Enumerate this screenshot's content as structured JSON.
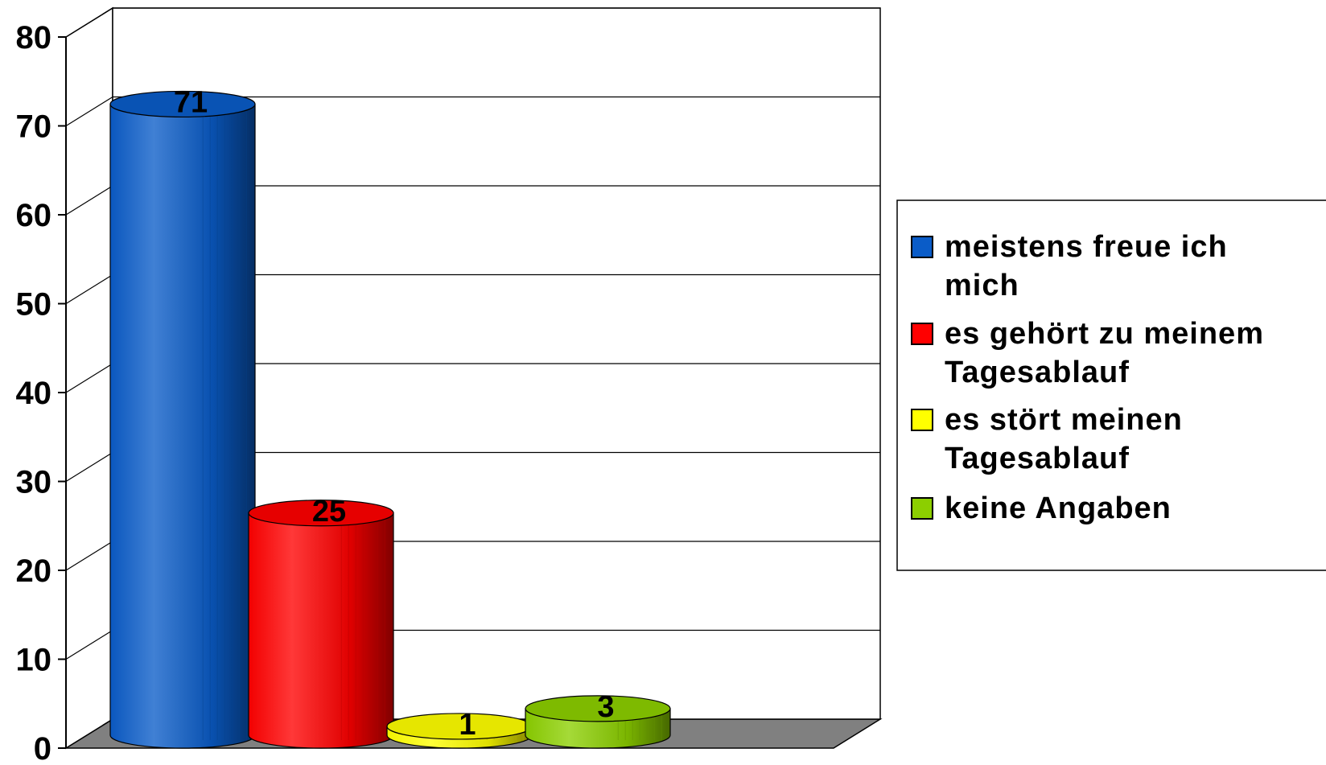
{
  "chart_data": {
    "type": "bar",
    "title": "",
    "xlabel": "",
    "ylabel": "",
    "categories": [
      ""
    ],
    "ylim": [
      0,
      80
    ],
    "yticks": [
      0,
      10,
      20,
      30,
      40,
      50,
      60,
      70,
      80
    ],
    "grid": true,
    "legend_position": "right",
    "style": "3d-cylinder",
    "series": [
      {
        "name": "meistens freue ich mich",
        "values": [
          71
        ],
        "label": "71",
        "color": "#0a5cc8"
      },
      {
        "name": "es gehört zu meinem Tagesablauf",
        "values": [
          25
        ],
        "label": "25",
        "color": "#ff0000"
      },
      {
        "name": "es stört meinen Tagesablauf",
        "values": [
          1
        ],
        "label": "1",
        "color": "#ffff00"
      },
      {
        "name": "keine Angaben",
        "values": [
          3
        ],
        "label": "3",
        "color": "#8ccf00"
      }
    ]
  },
  "legend": {
    "items": [
      {
        "lines": [
          "meistens freue ich",
          "mich"
        ],
        "color": "#0a5cc8"
      },
      {
        "lines": [
          "es gehört zu meinem",
          "Tagesablauf"
        ],
        "color": "#ff0000"
      },
      {
        "lines": [
          "es stört meinen",
          "Tagesablauf"
        ],
        "color": "#ffff00"
      },
      {
        "lines": [
          "keine Angaben"
        ],
        "color": "#8ccf00"
      }
    ]
  }
}
